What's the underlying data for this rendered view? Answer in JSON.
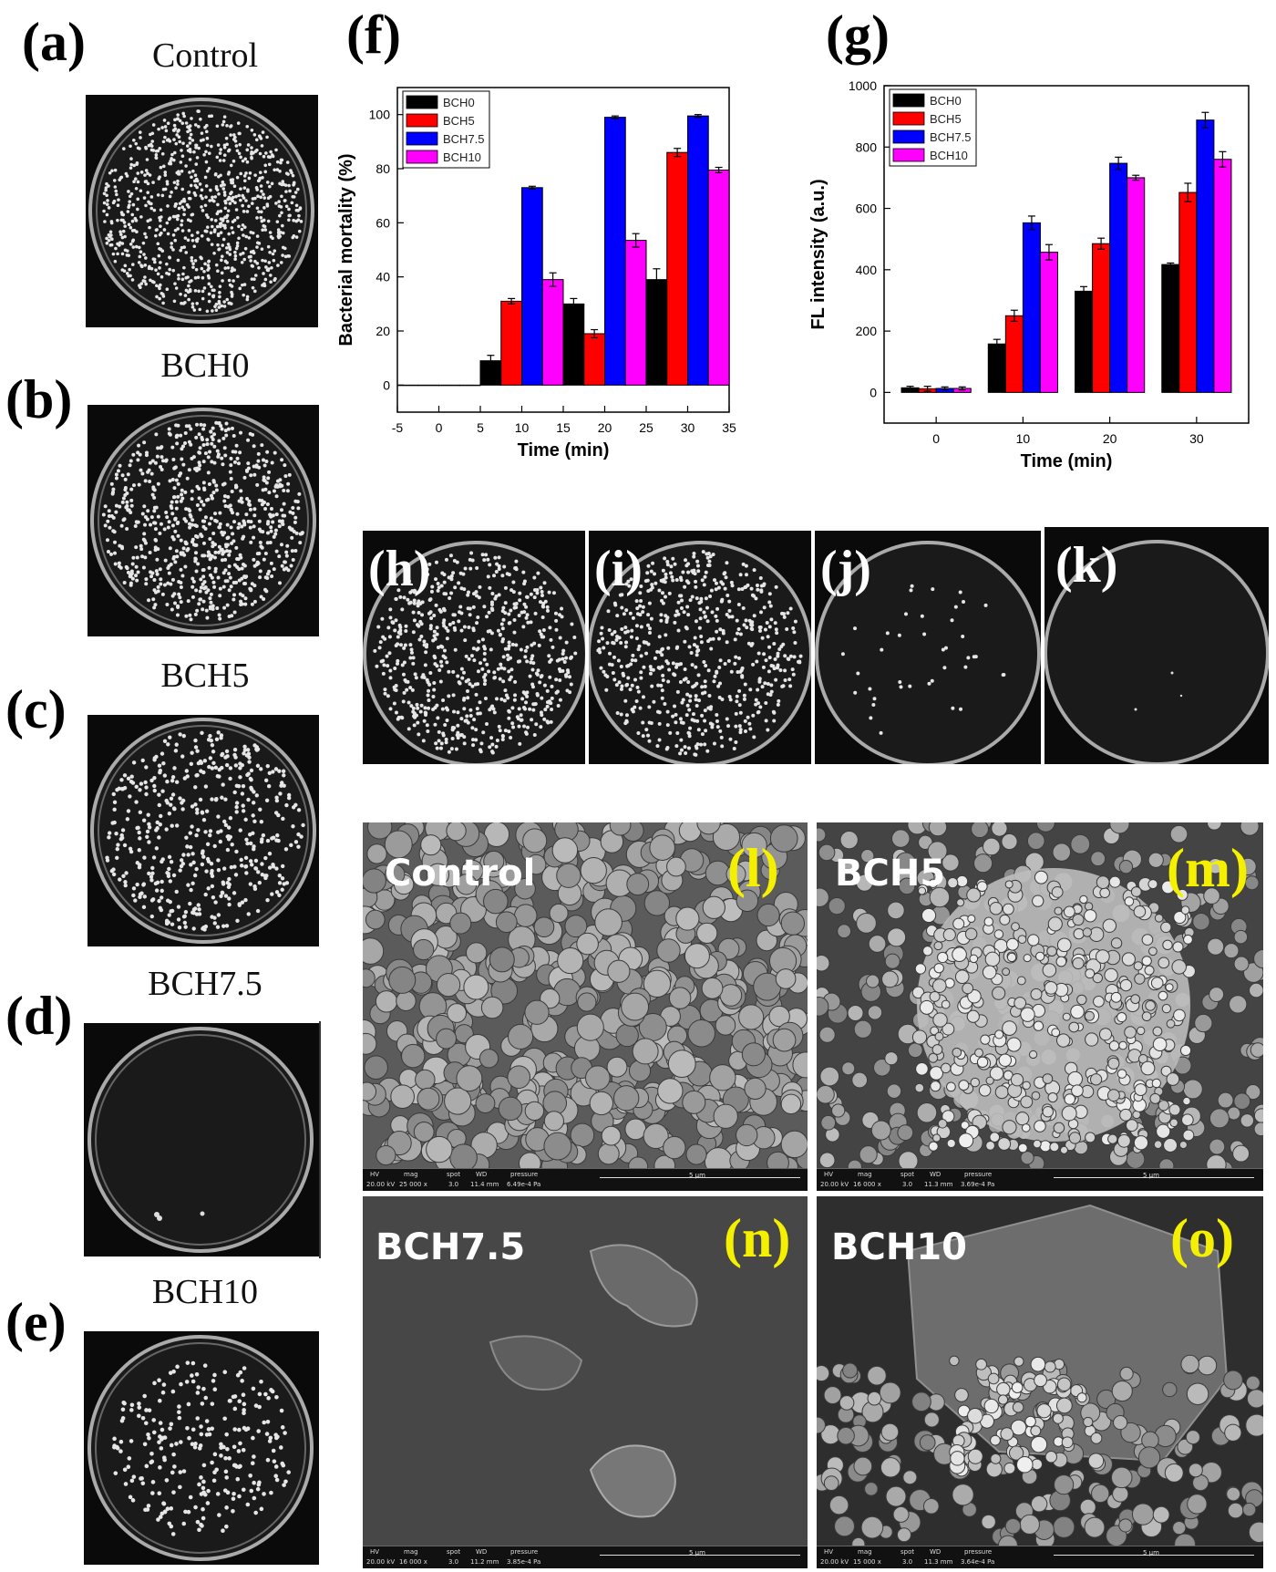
{
  "panels": {
    "a": {
      "letter": "(a)",
      "title": "Control"
    },
    "b": {
      "letter": "(b)",
      "title": "BCH0"
    },
    "c": {
      "letter": "(c)",
      "title": "BCH5"
    },
    "d": {
      "letter": "(d)",
      "title": "BCH7.5"
    },
    "e": {
      "letter": "(e)",
      "title": "BCH10"
    },
    "f": {
      "letter": "(f)"
    },
    "g": {
      "letter": "(g)"
    },
    "h": {
      "letter": "(h)"
    },
    "i": {
      "letter": "(i)"
    },
    "j": {
      "letter": "(j)"
    },
    "k": {
      "letter": "(k)"
    },
    "l": {
      "letter": "(l)",
      "label": "Control",
      "hv": "20.00 kV",
      "mag": "25 000 x",
      "spot": "3.0",
      "wd": "11.4 mm",
      "pressure": "6.49e-4 Pa",
      "scale": "5 μm"
    },
    "m": {
      "letter": "(m)",
      "label": "BCH5",
      "hv": "20.00 kV",
      "mag": "16 000 x",
      "spot": "3.0",
      "wd": "11.3 mm",
      "pressure": "3.69e-4 Pa",
      "scale": "5 μm"
    },
    "n": {
      "letter": "(n)",
      "label": "BCH7.5",
      "hv": "20.00 kV",
      "mag": "16 000 x",
      "spot": "3.0",
      "wd": "11.2 mm",
      "pressure": "3.85e-4 Pa",
      "scale": "5 μm"
    },
    "o": {
      "letter": "(o)",
      "label": "BCH10",
      "hv": "20.00 kV",
      "mag": "15 000 x",
      "spot": "3.0",
      "wd": "11.3 mm",
      "pressure": "3.64e-4 Pa",
      "scale": "5 μm"
    }
  },
  "sem_headers": {
    "hv": "HV",
    "mag": "mag",
    "spot": "spot",
    "wd": "WD",
    "pressure": "pressure"
  },
  "colors": {
    "BCH0": "#000000",
    "BCH5": "#ff0000",
    "BCH7.5": "#0000ff",
    "BCH10": "#ff00ff"
  },
  "chart_data": [
    {
      "id": "f",
      "type": "bar",
      "xlabel": "Time (min)",
      "ylabel": "Bacterial mortality (%)",
      "xlim": [
        -5,
        35
      ],
      "ylim": [
        -10,
        110
      ],
      "xticks": [
        -5,
        0,
        5,
        10,
        15,
        20,
        25,
        30,
        35
      ],
      "yticks": [
        0,
        20,
        40,
        60,
        80,
        100
      ],
      "x": [
        0,
        10,
        20,
        30
      ],
      "legend_position": "top-left",
      "series": [
        {
          "name": "BCH0",
          "values": [
            0,
            9,
            30,
            39
          ],
          "errors": [
            0,
            2,
            2,
            4
          ]
        },
        {
          "name": "BCH5",
          "values": [
            0,
            31,
            19,
            86
          ],
          "errors": [
            0,
            1,
            1.5,
            1.5
          ]
        },
        {
          "name": "BCH7.5",
          "values": [
            0,
            73,
            99,
            99.5
          ],
          "errors": [
            0,
            0.5,
            0.5,
            0.5
          ]
        },
        {
          "name": "BCH10",
          "values": [
            0,
            39,
            53.5,
            79.5
          ],
          "errors": [
            0,
            2.5,
            2.5,
            1
          ]
        }
      ]
    },
    {
      "id": "g",
      "type": "bar",
      "xlabel": "Time (min)",
      "ylabel": "FL intensity (a.u.)",
      "categories": [
        "0",
        "10",
        "20",
        "30"
      ],
      "ylim": [
        -100,
        1000
      ],
      "yticks": [
        0,
        200,
        400,
        600,
        800,
        1000
      ],
      "legend_position": "top-left",
      "series": [
        {
          "name": "BCH0",
          "values": [
            15,
            158,
            330,
            417
          ],
          "errors": [
            5,
            15,
            15,
            5
          ]
        },
        {
          "name": "BCH5",
          "values": [
            12,
            250,
            485,
            652
          ],
          "errors": [
            8,
            18,
            18,
            30
          ]
        },
        {
          "name": "BCH7.5",
          "values": [
            13,
            553,
            747,
            888
          ],
          "errors": [
            5,
            22,
            20,
            25
          ]
        },
        {
          "name": "BCH10",
          "values": [
            13,
            457,
            700,
            760
          ],
          "errors": [
            5,
            25,
            8,
            25
          ]
        }
      ]
    }
  ]
}
